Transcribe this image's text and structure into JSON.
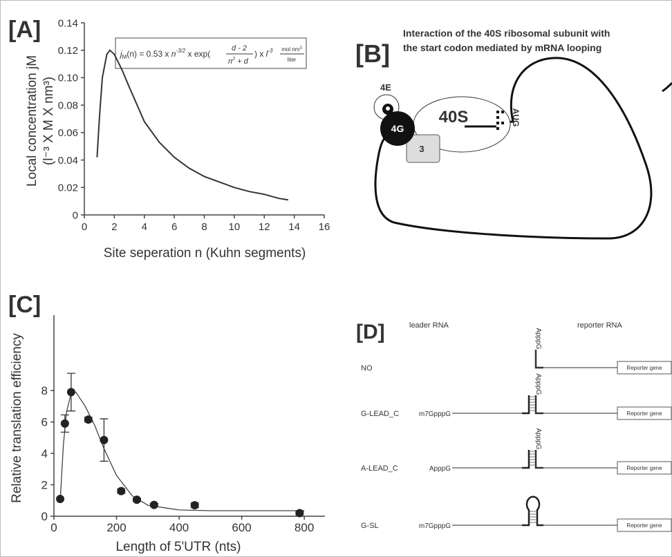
{
  "chart_data": [
    {
      "type": "line",
      "title": "[A]",
      "annotation": {
        "lhs": "j",
        "lhs_sub": "M",
        "a": "(n) = 0.53 x ",
        "n": "n",
        "n_exp": "-3/2",
        "b": " x exp(",
        "num": "d - 2",
        "den": "n",
        "den_exp": "2",
        "den_rest": " + d",
        "c": ") x ",
        "l": "l",
        "l_exp": "-3",
        "unit_num": "mol nm",
        "unit_num_exp": "3",
        "unit_den": "liter"
      },
      "x": [
        0.85,
        1.0,
        1.2,
        1.5,
        1.7,
        2,
        2.5,
        3,
        4,
        5,
        6,
        7,
        8,
        9,
        10,
        11,
        12,
        13,
        13.6
      ],
      "values": [
        0.042,
        0.07,
        0.1,
        0.117,
        0.12,
        0.117,
        0.106,
        0.093,
        0.068,
        0.053,
        0.042,
        0.034,
        0.028,
        0.024,
        0.02,
        0.017,
        0.015,
        0.012,
        0.011
      ],
      "color": "#333333",
      "xlim": [
        0,
        16
      ],
      "ylim": [
        0,
        0.14
      ],
      "xticks": [
        0,
        2,
        4,
        6,
        8,
        10,
        12,
        14,
        16
      ],
      "yticks": [
        0,
        0.02,
        0.04,
        0.06,
        0.08,
        {
          "value": 0.1,
          "label": "0.10"
        },
        0.12,
        0.14
      ],
      "x_label": "Site seperation n (Kuhn segments)",
      "y_label": [
        "Local concentration jM",
        "(l⁻³ X M X nm³)"
      ]
    },
    {
      "type": "scatter",
      "title": "[C]",
      "x": [
        20,
        35,
        55,
        110,
        160,
        215,
        265,
        320,
        450,
        785
      ],
      "values": [
        1.1,
        5.9,
        7.9,
        6.15,
        4.85,
        1.6,
        1.05,
        0.72,
        0.7,
        0.2
      ],
      "errors": [
        null,
        0.55,
        1.2,
        0.15,
        1.35,
        0.15,
        0.1,
        0.1,
        0.15,
        0.1
      ],
      "fit": {
        "x": [
          20,
          30,
          40,
          55,
          70,
          100,
          130,
          160,
          200,
          250,
          300,
          400,
          500,
          800
        ],
        "values": [
          1.0,
          4.5,
          6.6,
          7.85,
          7.9,
          7.0,
          5.8,
          4.3,
          2.6,
          1.3,
          0.7,
          0.4,
          0.35,
          0.35
        ]
      },
      "color": "#222222",
      "xlim": [
        0,
        866
      ],
      "ylim": [
        0,
        12.8
      ],
      "xticks": [
        0,
        200,
        400,
        600,
        800
      ],
      "yticks": [
        0,
        2,
        4,
        6,
        8
      ],
      "x_label": "Length of 5'UTR (nts)",
      "y_label": "Relative translation efficiency"
    }
  ],
  "panel_b": {
    "label": "[B]",
    "title": [
      "Interaction of the 40S ribosomal subunit with",
      "the start codon mediated by mRNA looping"
    ],
    "e4": "4E",
    "g4": "4G",
    "s40": "40S",
    "f3": "3",
    "codon": "AUG"
  },
  "panel_d": {
    "label": "[D]",
    "leader": "leader RNA",
    "reporter": "reporter RNA",
    "box": "Reporter gene",
    "rows": [
      {
        "name": "NO",
        "top_cap": "ApppG"
      },
      {
        "name": "G-LEAD_C",
        "cap": "m7GpppG",
        "top_cap": "ApppG"
      },
      {
        "name": "A-LEAD_C",
        "cap": "ApppG",
        "top_cap": "ApppG"
      },
      {
        "name": "G-SL",
        "cap": "m7GpppG"
      }
    ]
  }
}
